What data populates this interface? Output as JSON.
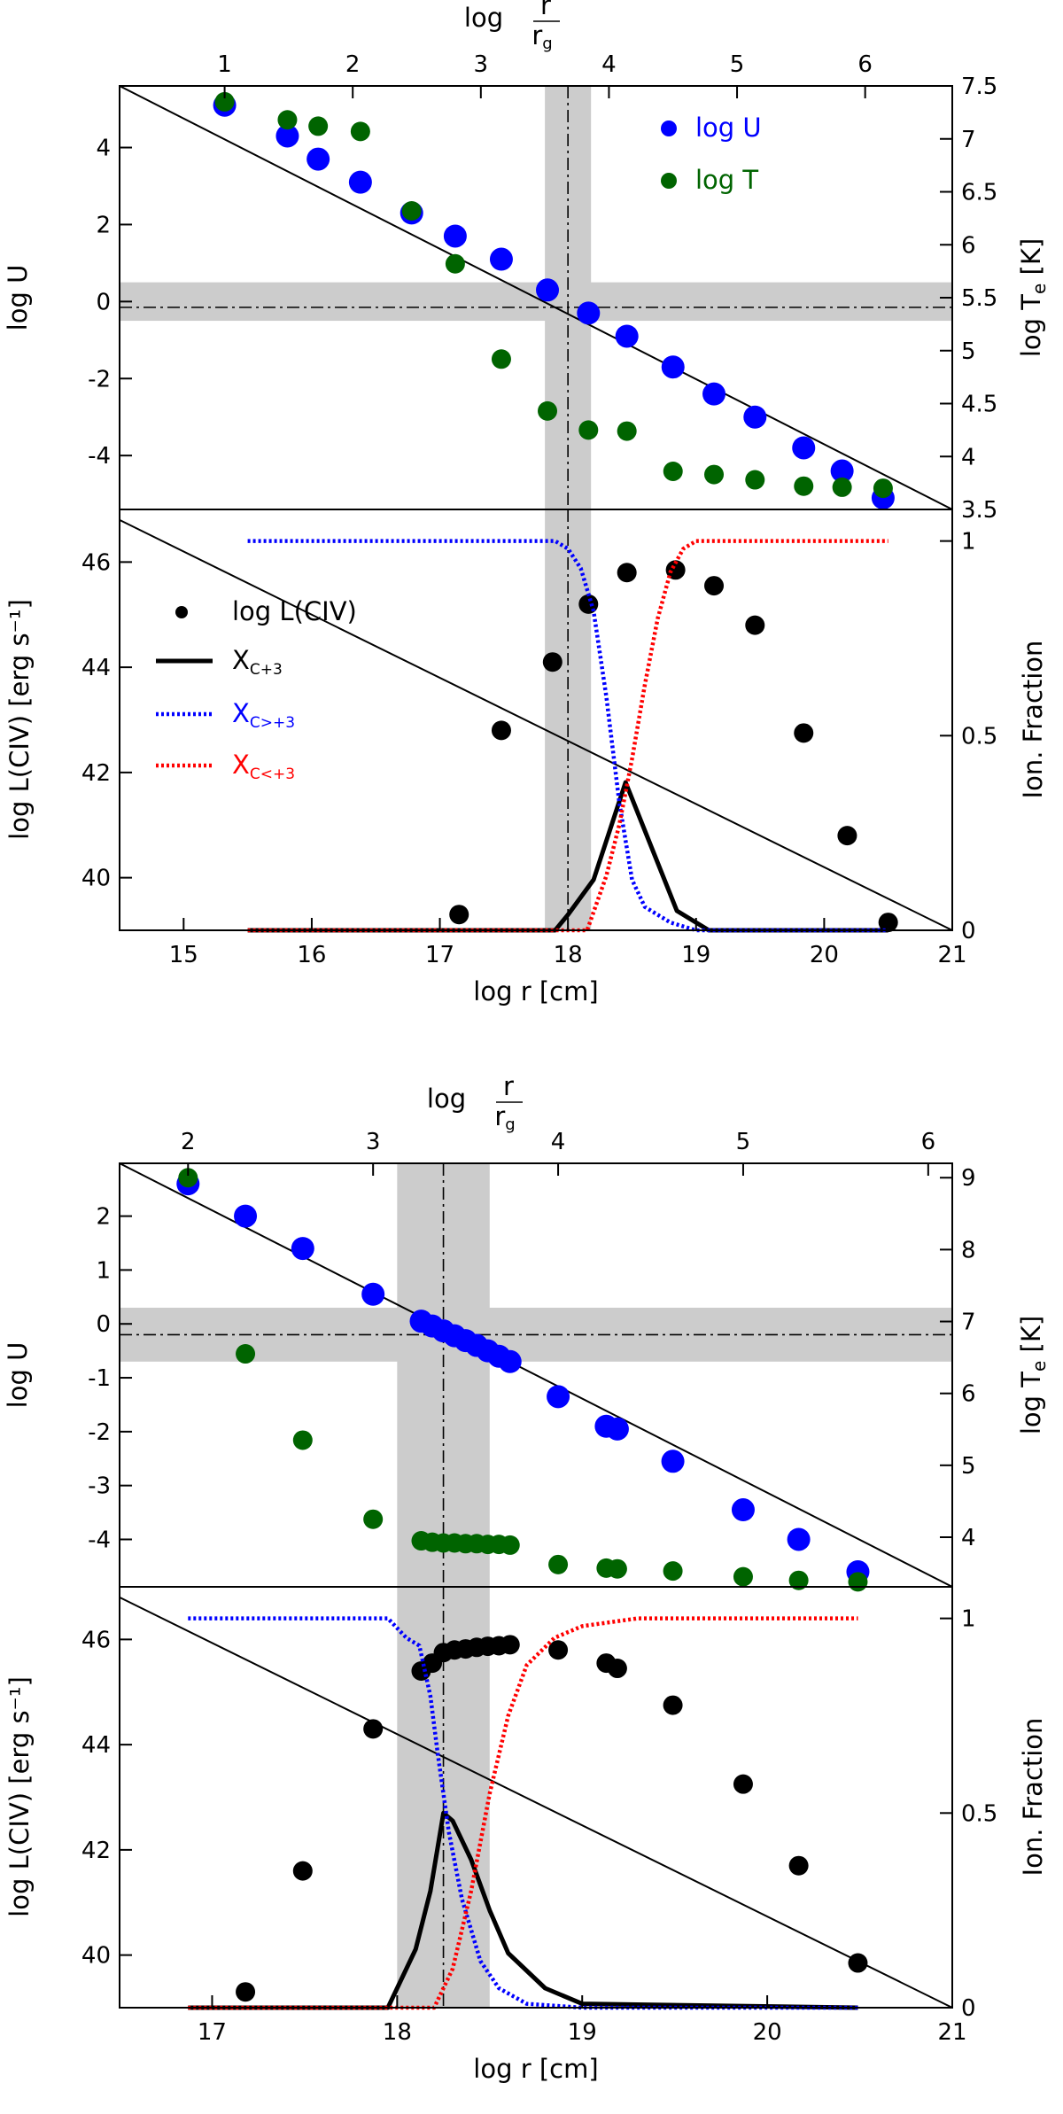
{
  "chart_data": [
    {
      "type": "scatter",
      "panel": "figure-1-top",
      "title": "",
      "xlabel": "log r [cm]",
      "ylabel": "log U",
      "y2label": "log T_e [K]",
      "x2label": "log r/r_g",
      "xlim": [
        14.5,
        21
      ],
      "ylim": [
        -5.4,
        5.6
      ],
      "y2lim": [
        3.5,
        7.5
      ],
      "x2ticks": [
        "1",
        "2",
        "3",
        "4",
        "5",
        "6"
      ],
      "x2tick_positions": [
        15.32,
        16.32,
        17.32,
        18.32,
        19.32,
        20.32
      ],
      "yticks": [
        -4,
        -2,
        0,
        2,
        4
      ],
      "y2ticks": [
        3.5,
        4,
        4.5,
        5,
        5.5,
        6,
        6.5,
        7,
        7.5
      ],
      "legend": [
        {
          "label": "log U",
          "color": "#0000ff"
        },
        {
          "label": "log T",
          "color": "#006400"
        }
      ],
      "series": [
        {
          "name": "log U",
          "color": "#0000ff",
          "x": [
            15.32,
            15.81,
            16.05,
            16.38,
            16.78,
            17.12,
            17.48,
            17.84,
            18.16,
            18.46,
            18.82,
            19.14,
            19.46,
            19.84,
            20.14,
            20.46
          ],
          "y": [
            5.1,
            4.3,
            3.7,
            3.1,
            2.3,
            1.7,
            1.1,
            0.3,
            -0.3,
            -0.9,
            -1.7,
            -2.4,
            -3.0,
            -3.8,
            -4.4,
            -5.1
          ]
        },
        {
          "name": "log T",
          "color": "#006400",
          "x": [
            15.32,
            15.81,
            16.05,
            16.38,
            16.78,
            17.12,
            17.48,
            17.84,
            18.16,
            18.46,
            18.82,
            19.14,
            19.46,
            19.84,
            20.14,
            20.46
          ],
          "y": [
            7.35,
            7.18,
            7.12,
            7.07,
            6.32,
            5.82,
            4.92,
            4.43,
            4.25,
            4.24,
            3.86,
            3.83,
            3.78,
            3.72,
            3.71,
            3.7
          ]
        }
      ],
      "guides": {
        "vline": 18.0,
        "vband": [
          17.82,
          18.18
        ],
        "hline": -0.15,
        "hband": [
          -0.5,
          0.5
        ]
      },
      "diag_line": {
        "x": [
          14.5,
          21.0
        ],
        "y": [
          5.6,
          -5.4
        ]
      }
    },
    {
      "type": "line",
      "panel": "figure-1-bottom",
      "title": "",
      "xlabel": "log r [cm]",
      "ylabel": "log L(CIV) [erg s⁻¹]",
      "y2label": "Ion. Fraction",
      "xlim": [
        14.5,
        21
      ],
      "ylim": [
        39,
        47
      ],
      "y2lim": [
        0,
        1.0811
      ],
      "xticks": [
        15,
        16,
        17,
        18,
        19,
        20,
        21
      ],
      "yticks": [
        40,
        42,
        44,
        46
      ],
      "y2ticks": [
        "0",
        "0.5",
        "1"
      ],
      "legend": [
        {
          "label": "log L(CIV)",
          "main": "log L(CIV)",
          "sub": "",
          "color": "#000000",
          "style": "dot"
        },
        {
          "label": "X_C+3",
          "main": "X",
          "sub": "C+3",
          "color": "#000000",
          "style": "solid"
        },
        {
          "label": "X_C>+3",
          "main": "X",
          "sub": "C>+3",
          "color": "#0000ff",
          "style": "dotted"
        },
        {
          "label": "X_C<+3",
          "main": "X",
          "sub": "C<+3",
          "color": "#ff0000",
          "style": "dotted"
        }
      ],
      "series": [
        {
          "name": "log L(CIV)",
          "color": "#000000",
          "x": [
            17.15,
            17.48,
            17.88,
            18.16,
            18.46,
            18.84,
            19.14,
            19.46,
            19.84,
            20.18,
            20.5
          ],
          "y": [
            39.3,
            42.8,
            44.1,
            45.2,
            45.8,
            45.85,
            45.55,
            44.8,
            42.75,
            40.8,
            39.15
          ]
        },
        {
          "name": "X_C+3",
          "color": "#000000",
          "x": [
            15.5,
            17.9,
            18.0,
            18.2,
            18.45,
            18.85,
            19.1,
            20.5
          ],
          "y": [
            0.0,
            0.0,
            0.04,
            0.13,
            0.38,
            0.05,
            0.0,
            0.0
          ]
        },
        {
          "name": "X_C>+3",
          "color": "#0000ff",
          "x": [
            15.5,
            17.9,
            18.0,
            18.1,
            18.2,
            18.3,
            18.4,
            18.5,
            18.6,
            18.8,
            19.0,
            20.5
          ],
          "y": [
            1.0,
            1.0,
            0.98,
            0.93,
            0.82,
            0.6,
            0.33,
            0.13,
            0.06,
            0.02,
            0.0,
            0.0
          ]
        },
        {
          "name": "X_C<+3",
          "color": "#ff0000",
          "x": [
            15.5,
            18.15,
            18.3,
            18.4,
            18.5,
            18.6,
            18.7,
            18.8,
            18.9,
            19.0,
            20.5
          ],
          "y": [
            0.0,
            0.0,
            0.14,
            0.27,
            0.44,
            0.63,
            0.8,
            0.92,
            0.98,
            1.0,
            1.0
          ]
        }
      ],
      "guides": {
        "vline": 18.0,
        "vband": [
          17.82,
          18.18
        ]
      },
      "diag_line": {
        "x": [
          14.5,
          21.0
        ],
        "y": [
          46.8,
          39.0
        ]
      }
    },
    {
      "type": "scatter",
      "panel": "figure-2-top",
      "title": "",
      "xlabel": "log r [cm]",
      "ylabel": "log U",
      "y2label": "log T_e [K]",
      "x2label": "log r/r_g",
      "xlim": [
        16.5,
        21
      ],
      "ylim": [
        -4.88,
        2.98
      ],
      "y2lim": [
        3.31,
        9.2
      ],
      "x2ticks": [
        "2",
        "3",
        "4",
        "5",
        "6"
      ],
      "x2tick_positions": [
        16.87,
        17.87,
        18.87,
        19.87,
        20.87
      ],
      "yticks": [
        -4,
        -3,
        -2,
        -1,
        0,
        1,
        2
      ],
      "y2ticks": [
        4,
        5,
        6,
        7,
        8,
        9
      ],
      "series": [
        {
          "name": "log U",
          "color": "#0000ff",
          "x": [
            16.87,
            17.18,
            17.49,
            17.87,
            18.13,
            18.19,
            18.25,
            18.31,
            18.37,
            18.43,
            18.49,
            18.55,
            18.61,
            18.87,
            19.13,
            19.19,
            19.49,
            19.87,
            20.17,
            20.49
          ],
          "y": [
            2.6,
            2.0,
            1.4,
            0.55,
            0.05,
            -0.04,
            -0.13,
            -0.22,
            -0.31,
            -0.4,
            -0.5,
            -0.6,
            -0.7,
            -1.35,
            -1.9,
            -1.95,
            -2.55,
            -3.45,
            -4.0,
            -4.6
          ]
        },
        {
          "name": "log T",
          "color": "#006400",
          "x": [
            16.87,
            17.18,
            17.49,
            17.87,
            18.13,
            18.19,
            18.25,
            18.31,
            18.37,
            18.43,
            18.49,
            18.55,
            18.61,
            18.87,
            19.13,
            19.19,
            19.49,
            19.87,
            20.17,
            20.49
          ],
          "y": [
            9.0,
            6.55,
            5.35,
            4.25,
            3.95,
            3.93,
            3.92,
            3.92,
            3.91,
            3.91,
            3.9,
            3.9,
            3.89,
            3.62,
            3.57,
            3.56,
            3.53,
            3.45,
            3.4,
            3.38
          ]
        }
      ],
      "guides": {
        "vline": 18.25,
        "vband": [
          18.0,
          18.5
        ],
        "hline": -0.2,
        "hband": [
          -0.7,
          0.3
        ]
      },
      "diag_line": {
        "x": [
          16.5,
          21.0
        ],
        "y": [
          2.98,
          -4.88
        ]
      }
    },
    {
      "type": "line",
      "panel": "figure-2-bottom",
      "title": "",
      "xlabel": "log r [cm]",
      "ylabel": "log L(CIV) [erg s⁻¹]",
      "y2label": "Ion. Fraction",
      "xlim": [
        16.5,
        21
      ],
      "ylim": [
        39,
        47
      ],
      "y2lim": [
        0,
        1.0811
      ],
      "xticks": [
        17,
        18,
        19,
        20,
        21
      ],
      "yticks": [
        40,
        42,
        44,
        46
      ],
      "y2ticks": [
        "0",
        "0.5",
        "1"
      ],
      "series": [
        {
          "name": "log L(CIV)",
          "color": "#000000",
          "x": [
            17.18,
            17.49,
            17.87,
            18.13,
            18.19,
            18.25,
            18.31,
            18.37,
            18.43,
            18.49,
            18.55,
            18.61,
            18.87,
            19.13,
            19.19,
            19.49,
            19.87,
            20.17,
            20.49
          ],
          "y": [
            39.3,
            41.6,
            44.3,
            45.4,
            45.55,
            45.75,
            45.8,
            45.82,
            45.85,
            45.87,
            45.88,
            45.9,
            45.8,
            45.55,
            45.45,
            44.75,
            43.25,
            41.7,
            39.85
          ]
        },
        {
          "name": "X_C+3",
          "color": "#000000",
          "x": [
            16.87,
            17.95,
            18.1,
            18.18,
            18.25,
            18.3,
            18.4,
            18.5,
            18.6,
            18.8,
            19.0,
            20.49
          ],
          "y": [
            0.0,
            0.0,
            0.15,
            0.3,
            0.5,
            0.48,
            0.38,
            0.25,
            0.14,
            0.05,
            0.01,
            0.0
          ]
        },
        {
          "name": "X_C>+3",
          "color": "#0000ff",
          "x": [
            16.87,
            17.95,
            18.05,
            18.12,
            18.18,
            18.22,
            18.28,
            18.35,
            18.45,
            18.55,
            18.7,
            19.0,
            20.49
          ],
          "y": [
            1.0,
            1.0,
            0.95,
            0.93,
            0.8,
            0.65,
            0.45,
            0.28,
            0.12,
            0.05,
            0.01,
            0.0,
            0.0
          ]
        },
        {
          "name": "X_C<+3",
          "color": "#ff0000",
          "x": [
            16.87,
            18.2,
            18.3,
            18.4,
            18.5,
            18.6,
            18.7,
            18.85,
            19.0,
            19.3,
            20.49
          ],
          "y": [
            0.0,
            0.0,
            0.1,
            0.3,
            0.55,
            0.75,
            0.88,
            0.95,
            0.98,
            1.0,
            1.0
          ]
        }
      ],
      "guides": {
        "vline": 18.25,
        "vband": [
          18.0,
          18.5
        ]
      },
      "diag_line": {
        "x": [
          16.5,
          21.0
        ],
        "y": [
          46.8,
          39.0
        ]
      }
    }
  ]
}
